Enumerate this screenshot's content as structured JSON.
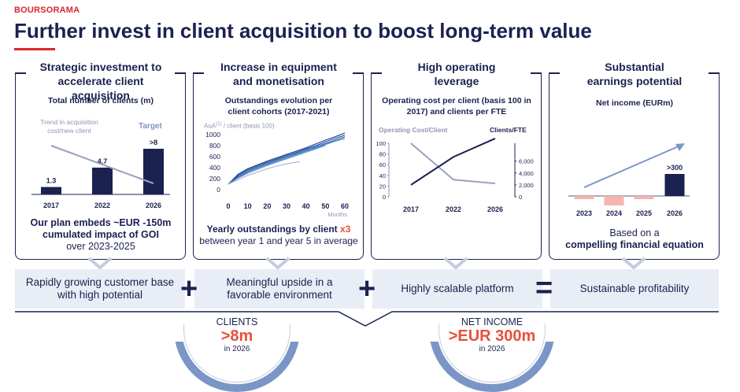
{
  "brand": "BOURSORAMA",
  "title": "Further invest in client acquisition to boost long-term value",
  "cards": [
    {
      "heading_line1": "Strategic investment to",
      "heading_line2": "accelerate client acquisition",
      "subtitle": "Total number of clients (m)",
      "trend_label_line1": "Trend in acquisition",
      "trend_label_line2": "cost/new client",
      "target_label": "Target",
      "footer_line1": "Our plan embeds ~EUR -150m",
      "footer_line2": "cumulated impact of GOI",
      "footer_line3": "over 2023-2025"
    },
    {
      "heading_line1": "Increase in equipment",
      "heading_line2": "and monetisation",
      "subtitle_line1": "Outstandings evolution per",
      "subtitle_line2": "client cohorts (2017-2021)",
      "ylabel_prefix": "AuA",
      "ylabel_sup": "(1)",
      "ylabel_suffix": " / client (basis 100)",
      "xlabel": "Months",
      "footer_bold": "Yearly outstandings by client ",
      "footer_mult": "x3",
      "footer_line2": "between year 1 and year 5 in average"
    },
    {
      "heading_line1": "High operating",
      "heading_line2": "leverage",
      "subtitle_line1": "Operating cost per client (basis 100 in",
      "subtitle_line2": "2017) and clients per FTE",
      "left_axis_label": "Operating Cost/Client",
      "right_axis_label": "Clients/FTE"
    },
    {
      "heading_line1": "Substantial",
      "heading_line2": "earnings potential",
      "subtitle": "Net income (EURm)",
      "footer_line1": "Based on a",
      "footer_line2": "compelling financial equation"
    }
  ],
  "bands": [
    {
      "line1": "Rapidly growing customer base",
      "line2": "with high potential"
    },
    {
      "line1": "Meaningful upside in a",
      "line2": "favorable environment"
    },
    {
      "line1": "Highly scalable platform",
      "line2": ""
    },
    {
      "line1": "Sustainable profitability",
      "line2": ""
    }
  ],
  "symbols": [
    "+",
    "+",
    "="
  ],
  "kpis": [
    {
      "label": "CLIENTS",
      "value": ">8m",
      "note": "in 2026"
    },
    {
      "label": "NET INCOME",
      "value": ">EUR 300m",
      "note": "in 2026"
    }
  ],
  "colors": {
    "navy": "#1b2150",
    "red": "#d9262e",
    "accent": "#e8503a",
    "band": "#e9edf5",
    "ring": "#7b96c6"
  },
  "chart_data": [
    {
      "type": "bar",
      "title": "Total number of clients (m)",
      "categories": [
        "2017",
        "2022",
        "2026"
      ],
      "values": [
        1.3,
        4.7,
        8
      ],
      "value_labels": [
        "1.3",
        "4.7",
        ">8"
      ],
      "ylim": [
        0,
        10
      ]
    },
    {
      "type": "line",
      "title": "Outstandings evolution per client cohorts (2017-2021)",
      "xlabel": "Months",
      "x_ticks": [
        0,
        10,
        20,
        30,
        40,
        50,
        60
      ],
      "y_ticks": [
        0,
        200,
        400,
        600,
        800,
        1000
      ],
      "xlim": [
        0,
        60
      ],
      "ylim": [
        0,
        1000
      ],
      "series": [
        {
          "values": [
            [
              0,
              100
            ],
            [
              5,
              280
            ],
            [
              10,
              380
            ],
            [
              15,
              450
            ],
            [
              20,
              520
            ],
            [
              25,
              580
            ],
            [
              30,
              640
            ],
            [
              35,
              700
            ],
            [
              40,
              760
            ],
            [
              45,
              830
            ],
            [
              50,
              900
            ],
            [
              55,
              960
            ],
            [
              60,
              1030
            ]
          ]
        },
        {
          "values": [
            [
              0,
              100
            ],
            [
              5,
              260
            ],
            [
              10,
              360
            ],
            [
              15,
              430
            ],
            [
              20,
              500
            ],
            [
              25,
              560
            ],
            [
              30,
              620
            ],
            [
              35,
              680
            ],
            [
              40,
              740
            ],
            [
              45,
              800
            ],
            [
              50,
              870
            ],
            [
              55,
              930
            ],
            [
              60,
              990
            ]
          ]
        },
        {
          "values": [
            [
              0,
              100
            ],
            [
              5,
              240
            ],
            [
              10,
              340
            ],
            [
              15,
              410
            ],
            [
              20,
              480
            ],
            [
              25,
              540
            ],
            [
              30,
              600
            ],
            [
              35,
              660
            ],
            [
              40,
              720
            ],
            [
              45,
              780
            ],
            [
              50,
              840
            ],
            [
              55,
              900
            ],
            [
              60,
              960
            ]
          ]
        },
        {
          "values": [
            [
              0,
              100
            ],
            [
              5,
              220
            ],
            [
              10,
              320
            ],
            [
              15,
              390
            ],
            [
              20,
              460
            ],
            [
              25,
              520
            ],
            [
              30,
              580
            ],
            [
              35,
              640
            ],
            [
              40,
              700
            ],
            [
              45,
              760
            ],
            [
              50,
              820
            ],
            [
              55,
              880
            ],
            [
              60,
              930
            ]
          ]
        },
        {
          "values": [
            [
              0,
              100
            ],
            [
              5,
              210
            ],
            [
              10,
              300
            ],
            [
              15,
              370
            ],
            [
              20,
              440
            ],
            [
              25,
              500
            ],
            [
              30,
              560
            ],
            [
              35,
              620
            ],
            [
              40,
              680
            ],
            [
              45,
              740
            ],
            [
              50,
              800
            ]
          ]
        },
        {
          "values": [
            [
              0,
              100
            ],
            [
              5,
              180
            ],
            [
              10,
              260
            ],
            [
              15,
              320
            ],
            [
              20,
              380
            ],
            [
              25,
              430
            ],
            [
              30,
              470
            ],
            [
              35,
              500
            ],
            [
              37,
              510
            ]
          ]
        }
      ]
    },
    {
      "type": "line",
      "title": "Operating cost per client (basis 100 in 2017) and clients per FTE",
      "categories": [
        "2017",
        "2022",
        "2026"
      ],
      "series": [
        {
          "name": "Operating Cost/Client",
          "values": [
            100,
            32,
            25
          ],
          "axis": "left"
        },
        {
          "name": "Clients/FTE",
          "values": [
            2000,
            6700,
            9800
          ],
          "axis": "right"
        }
      ],
      "left_ticks": [
        0,
        20,
        40,
        60,
        80,
        100
      ],
      "right_ticks": [
        "0",
        "2,000",
        "4,000",
        "6,000"
      ],
      "left_ylim": [
        0,
        100
      ],
      "right_ylim": [
        0,
        9000
      ]
    },
    {
      "type": "bar",
      "title": "Net income (EURm)",
      "categories": [
        "2023",
        "2024",
        "2025",
        "2026"
      ],
      "values": [
        -10,
        -30,
        -10,
        300
      ],
      "value_labels": [
        "",
        "",
        "",
        ">300"
      ]
    }
  ]
}
